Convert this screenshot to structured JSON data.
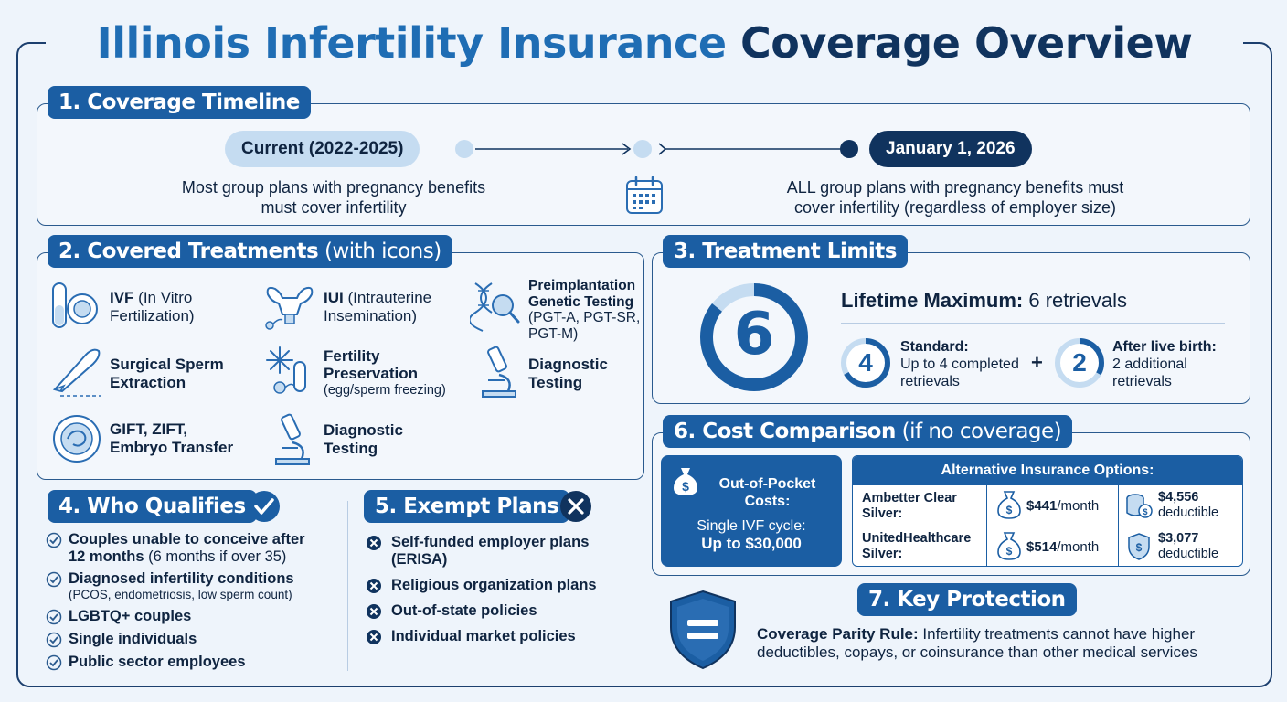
{
  "title": {
    "part1": "Illinois Infertility Insurance",
    "part2": "Coverage Overview"
  },
  "timeline": {
    "heading": "1. Coverage Timeline",
    "current_label": "Current (2022-2025)",
    "current_text_1": "Most group plans with pregnancy benefits",
    "current_text_2": "must cover infertility",
    "future_label": "January 1, 2026",
    "future_text_1": "ALL group plans with pregnancy benefits must",
    "future_text_2": "cover infertility (regardless of employer size)"
  },
  "treatments": {
    "heading_bold": "2. Covered Treatments",
    "heading_light": " (with icons)",
    "items": [
      {
        "bold": "IVF",
        "rest1": " (In Vitro",
        "rest2": "Fertilization)"
      },
      {
        "bold": "IUI",
        "rest1": " (Intrauterine",
        "rest2": "Insemination)"
      },
      {
        "bold1": "Preimplantation",
        "bold2": "Genetic Testing",
        "rest1": "(PGT-A, PGT-SR,",
        "rest2": "PGT-M)"
      },
      {
        "bold1": "Surgical Sperm",
        "bold2": "Extraction"
      },
      {
        "bold1": "Fertility",
        "bold2": "Preservation",
        "rest1": "(egg/sperm freezing)"
      },
      {
        "bold1": "Diagnostic",
        "bold2": "Testing"
      },
      {
        "bold1": "GIFT, ZIFT,",
        "bold2": "Embryo Transfer"
      },
      {
        "bold1": "Diagnostic",
        "bold2": "Testing"
      }
    ]
  },
  "limits": {
    "heading": "3. Treatment Limits",
    "big_number": "6",
    "lifetime_bold": "Lifetime Maximum:",
    "lifetime_rest": " 6 retrievals",
    "standard_num": "4",
    "standard_title": "Standard:",
    "standard_text_1": "Up to 4 completed",
    "standard_text_2": "retrievals",
    "plus": "+",
    "after_num": "2",
    "after_title": "After live birth:",
    "after_text_1": "2 additional",
    "after_text_2": "retrievals"
  },
  "qualifies": {
    "heading": "4. Who Qualifies",
    "items": [
      {
        "line1": "Couples unable to conceive after",
        "line2_bold": "12 months",
        "line2_rest": " (6 months if over 35)"
      },
      {
        "line1": "Diagnosed infertility conditions",
        "line2": "(PCOS, endometriosis, low sperm count)"
      },
      {
        "line1": "LGBTQ+ couples"
      },
      {
        "line1": "Single individuals"
      },
      {
        "line1": "Public sector employees"
      }
    ]
  },
  "exempt": {
    "heading": "5. Exempt Plans",
    "items": [
      {
        "line1": "Self-funded employer plans",
        "line2": "(ERISA)"
      },
      {
        "line1": "Religious organization plans"
      },
      {
        "line1": "Out-of-state policies"
      },
      {
        "line1": "Individual market policies"
      }
    ]
  },
  "cost": {
    "heading_bold": "6. Cost Comparison",
    "heading_light": " (if no coverage)",
    "oop_title_1": "Out-of-Pocket",
    "oop_title_2": "Costs:",
    "oop_text": "Single IVF cycle:",
    "oop_value": "Up to $30,000",
    "alt_heading": "Alternative Insurance Options:",
    "rows": [
      {
        "plan_1": "Ambetter Clear",
        "plan_2": "Silver:",
        "premium": "$441",
        "premium_unit": "/month",
        "deductible": "$4,556",
        "deductible_label": "deductible"
      },
      {
        "plan_1": "UnitedHealthcare",
        "plan_2": "Silver:",
        "premium": "$514",
        "premium_unit": "/month",
        "deductible": "$3,077",
        "deductible_label": "deductible"
      }
    ]
  },
  "protection": {
    "heading": "7. Key Protection",
    "rule_bold": "Coverage Parity Rule:",
    "rule_rest": " Infertility treatments cannot have higher",
    "rule_line2": "deductibles, copays, or coinsurance than other medical services"
  },
  "colors": {
    "primary": "#1b5ea3",
    "dark": "#10335e",
    "light_blue": "#c5dcf1",
    "bg": "#eef4fb"
  }
}
